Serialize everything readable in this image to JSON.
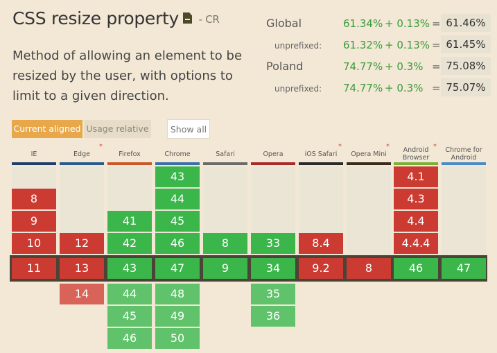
{
  "feature": {
    "title": "CSS resize property",
    "status": "- CR",
    "description": "Method of allowing an element to be resized by the user, with options to limit to a given direction."
  },
  "usage": {
    "global": {
      "label": "Global",
      "value": "61.34%",
      "plus": "+ 0.13%",
      "eq": "=",
      "total": "61.46%"
    },
    "global_unprefixed": {
      "label": "unprefixed:",
      "value": "61.32%",
      "plus": "+ 0.13%",
      "eq": "=",
      "total": "61.45%"
    },
    "region": {
      "label": "Poland",
      "value": "74.77%",
      "plus": "+ 0.3%",
      "eq": "=",
      "total": "75.08%"
    },
    "region_unprefixed": {
      "label": "unprefixed:",
      "value": "74.77%",
      "plus": "+ 0.3%",
      "eq": "=",
      "total": "75.07%"
    }
  },
  "filters": {
    "current_aligned": "Current aligned",
    "usage_relative": "Usage relative",
    "show_all": "Show all"
  },
  "browsers": [
    {
      "name": "IE",
      "star": false,
      "bar": "#1f3f6a"
    },
    {
      "name": "Edge",
      "star": true,
      "bar": "#2a5a8a"
    },
    {
      "name": "Firefox",
      "star": false,
      "bar": "#c8582a"
    },
    {
      "name": "Chrome",
      "star": false,
      "bar": "#3a6ea8"
    },
    {
      "name": "Safari",
      "star": false,
      "bar": "#6a6a6a"
    },
    {
      "name": "Opera",
      "star": false,
      "bar": "#a82a2a"
    },
    {
      "name": "iOS Safari",
      "star": true,
      "bar": "#2a2a2a"
    },
    {
      "name": "Opera Mini",
      "star": true,
      "bar": "#3a2a1a"
    },
    {
      "name": "Android Browser",
      "star": true,
      "bar": "#7ab03a"
    },
    {
      "name": "Chrome for Android",
      "star": false,
      "bar": "#4a8ac8"
    }
  ],
  "versions": {
    "IE": {
      "past": [
        {
          "r": 1,
          "v": "8",
          "s": "n"
        },
        {
          "r": 2,
          "v": "9",
          "s": "n"
        },
        {
          "r": 3,
          "v": "10",
          "s": "n"
        }
      ],
      "current": {
        "v": "11",
        "s": "n"
      },
      "future": []
    },
    "Edge": {
      "past": [
        {
          "r": 3,
          "v": "12",
          "s": "n"
        }
      ],
      "current": {
        "v": "13",
        "s": "n"
      },
      "future": [
        {
          "v": "14",
          "s": "nf"
        }
      ]
    },
    "Firefox": {
      "past": [
        {
          "r": 2,
          "v": "41",
          "s": "y"
        },
        {
          "r": 3,
          "v": "42",
          "s": "y"
        }
      ],
      "current": {
        "v": "43",
        "s": "y"
      },
      "future": [
        {
          "v": "44",
          "s": "yf"
        },
        {
          "v": "45",
          "s": "yf"
        },
        {
          "v": "46",
          "s": "yf"
        }
      ]
    },
    "Chrome": {
      "past": [
        {
          "r": 0,
          "v": "43",
          "s": "y"
        },
        {
          "r": 1,
          "v": "44",
          "s": "y"
        },
        {
          "r": 2,
          "v": "45",
          "s": "y"
        },
        {
          "r": 3,
          "v": "46",
          "s": "y"
        }
      ],
      "current": {
        "v": "47",
        "s": "y"
      },
      "future": [
        {
          "v": "48",
          "s": "yf"
        },
        {
          "v": "49",
          "s": "yf"
        },
        {
          "v": "50",
          "s": "yf"
        }
      ]
    },
    "Safari": {
      "past": [
        {
          "r": 3,
          "v": "8",
          "s": "y"
        }
      ],
      "current": {
        "v": "9",
        "s": "y"
      },
      "future": []
    },
    "Opera": {
      "past": [
        {
          "r": 3,
          "v": "33",
          "s": "y"
        }
      ],
      "current": {
        "v": "34",
        "s": "y"
      },
      "future": [
        {
          "v": "35",
          "s": "yf"
        },
        {
          "v": "36",
          "s": "yf"
        }
      ]
    },
    "iOS Safari": {
      "past": [
        {
          "r": 3,
          "v": "8.4",
          "s": "n"
        }
      ],
      "current": {
        "v": "9.2",
        "s": "n"
      },
      "future": []
    },
    "Opera Mini": {
      "past": [],
      "current": {
        "v": "8",
        "s": "n"
      },
      "future": []
    },
    "Android Browser": {
      "past": [
        {
          "r": 0,
          "v": "4.1",
          "s": "n"
        },
        {
          "r": 1,
          "v": "4.3",
          "s": "n"
        },
        {
          "r": 2,
          "v": "4.4",
          "s": "n"
        },
        {
          "r": 3,
          "v": "4.4.4",
          "s": "n"
        }
      ],
      "current": {
        "v": "46",
        "s": "y"
      },
      "future": []
    },
    "Chrome for Android": {
      "past": [],
      "current": {
        "v": "47",
        "s": "y"
      },
      "future": []
    }
  },
  "colors": {
    "supported": "#3bb64b",
    "unsupported": "#cc3b32",
    "accent": "#e8a84a"
  }
}
